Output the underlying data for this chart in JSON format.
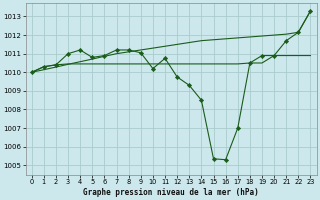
{
  "background_color": "#cce8ec",
  "grid_color": "#aacccc",
  "line_color": "#1a5c1a",
  "marker_color": "#1a5c1a",
  "title": "Graphe pression niveau de la mer (hPa)",
  "xlim": [
    -0.5,
    23.5
  ],
  "ylim": [
    1004.5,
    1013.7
  ],
  "yticks": [
    1005,
    1006,
    1007,
    1008,
    1009,
    1010,
    1011,
    1012,
    1013
  ],
  "xticks": [
    0,
    1,
    2,
    3,
    4,
    5,
    6,
    7,
    8,
    9,
    10,
    11,
    12,
    13,
    14,
    15,
    16,
    17,
    18,
    19,
    20,
    21,
    22,
    23
  ],
  "x": [
    0,
    1,
    2,
    3,
    4,
    5,
    6,
    7,
    8,
    9,
    10,
    11,
    12,
    13,
    14,
    15,
    16,
    17,
    18,
    19,
    20,
    21,
    22,
    23
  ],
  "y_main": [
    1010.0,
    1010.3,
    1010.4,
    1011.0,
    1011.2,
    1010.8,
    1010.9,
    1011.2,
    1011.2,
    1011.05,
    1010.2,
    1010.75,
    1009.75,
    1009.3,
    1008.5,
    1005.35,
    1005.3,
    1007.0,
    1010.5,
    1010.9,
    1010.9,
    1011.7,
    1012.15,
    1013.3
  ],
  "y_flat": [
    1010.0,
    1010.3,
    1010.4,
    1010.45,
    1010.45,
    1010.45,
    1010.45,
    1010.45,
    1010.45,
    1010.45,
    1010.45,
    1010.45,
    1010.45,
    1010.45,
    1010.45,
    1010.45,
    1010.45,
    1010.45,
    1010.5,
    1010.5,
    1010.9,
    1010.9,
    1010.9,
    1010.9
  ],
  "y_rise": [
    1010.0,
    1010.14,
    1010.28,
    1010.43,
    1010.57,
    1010.71,
    1010.86,
    1011.0,
    1011.1,
    1011.2,
    1011.3,
    1011.4,
    1011.5,
    1011.6,
    1011.7,
    1011.75,
    1011.8,
    1011.85,
    1011.9,
    1011.95,
    1012.0,
    1012.05,
    1012.15,
    1013.3
  ]
}
